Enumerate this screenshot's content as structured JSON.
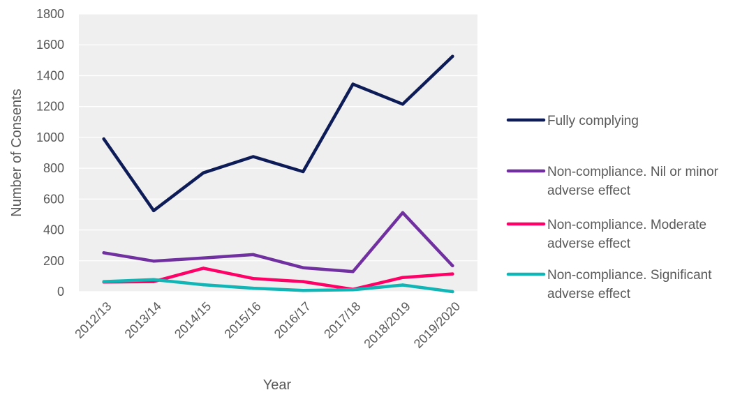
{
  "chart_data": {
    "type": "line",
    "title": "",
    "xlabel": "Year",
    "ylabel": "Number of Consents",
    "categories": [
      "2012/13",
      "2013/14",
      "2014/15",
      "2015/16",
      "2016/17",
      "2017/18",
      "2018/2019",
      "2019/2020"
    ],
    "ylim": [
      0,
      1800
    ],
    "yticks": [
      0,
      200,
      400,
      600,
      800,
      1000,
      1200,
      1400,
      1600,
      1800
    ],
    "grid": true,
    "legend_position": "right",
    "plot_background": "#efefef",
    "series": [
      {
        "name": "Fully complying",
        "legend_lines": [
          "Fully complying"
        ],
        "color": "#0d1b57",
        "values": [
          990,
          525,
          770,
          875,
          778,
          1345,
          1215,
          1525
        ]
      },
      {
        "name": "Non-compliance.  Nil or minor adverse effect",
        "legend_lines": [
          "Non-compliance.  Nil or minor",
          "adverse effect"
        ],
        "color": "#7030a0",
        "values": [
          252,
          198,
          218,
          240,
          155,
          130,
          512,
          168
        ]
      },
      {
        "name": "Non-compliance.  Moderate adverse effect",
        "legend_lines": [
          "Non-compliance.  Moderate",
          "adverse effect"
        ],
        "color": "#ff0066",
        "values": [
          62,
          65,
          152,
          85,
          65,
          15,
          92,
          115
        ]
      },
      {
        "name": "Non-compliance.  Significant adverse effect",
        "legend_lines": [
          "Non-compliance.  Significant",
          "adverse effect"
        ],
        "color": "#12b5b5",
        "values": [
          65,
          78,
          45,
          22,
          8,
          12,
          43,
          0
        ]
      }
    ]
  }
}
